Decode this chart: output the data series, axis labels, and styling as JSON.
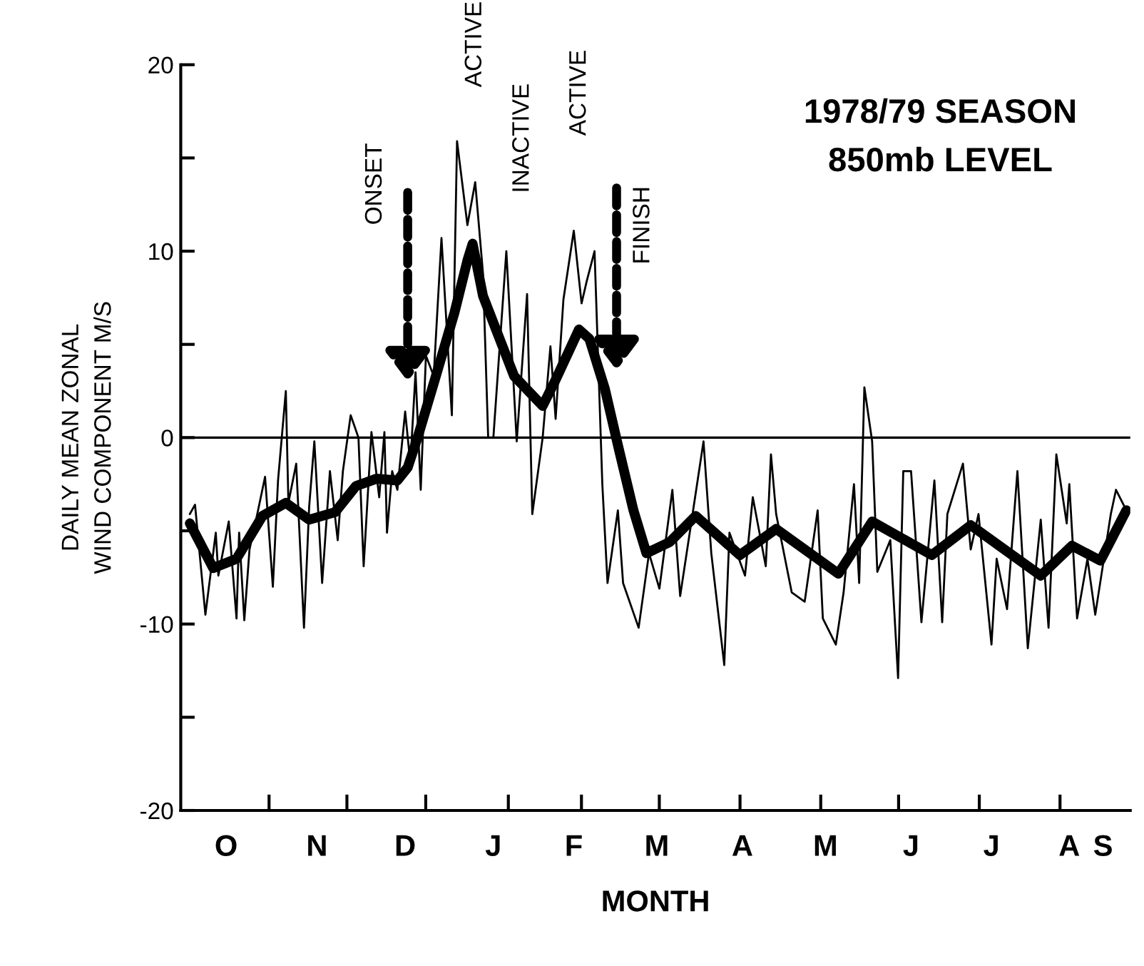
{
  "chart_data": {
    "type": "line",
    "title": "1978/79 SEASON",
    "subtitle": "850mb LEVEL",
    "xlabel": "MONTH",
    "ylabel": "DAILY MEAN ZONAL\nWIND COMPONENT M/S",
    "categories": [
      null,
      null,
      null,
      null,
      null,
      null,
      null,
      null,
      null,
      null,
      null,
      null,
      null,
      null,
      null,
      null,
      null,
      "O",
      null,
      null,
      null,
      null,
      null,
      null,
      null,
      null,
      null,
      null,
      null,
      null,
      null,
      null,
      null,
      null,
      null,
      null,
      null,
      null,
      null,
      null,
      null,
      null,
      null,
      null,
      null,
      null,
      null,
      null,
      null,
      null,
      null,
      null,
      "N",
      null,
      null,
      null,
      null,
      null,
      null,
      null,
      null,
      null,
      null,
      null,
      null,
      null,
      null,
      null,
      null,
      null,
      null,
      null,
      null,
      null,
      null,
      null,
      null,
      null,
      null,
      null,
      null,
      null,
      null,
      null,
      null,
      null,
      "D",
      null,
      null,
      null,
      null,
      null,
      null,
      null,
      null,
      null,
      null,
      null,
      null,
      null,
      null,
      null,
      null,
      null,
      null,
      null,
      null,
      null,
      null,
      null,
      null,
      null,
      null,
      null,
      null,
      null,
      null,
      null,
      null,
      null,
      "J",
      null,
      null,
      null,
      null,
      null,
      null,
      null,
      null,
      null,
      null,
      null,
      null,
      null,
      null,
      null,
      null,
      null,
      null,
      null,
      null,
      null,
      null,
      null,
      null,
      null,
      null,
      null,
      null,
      null,
      null,
      "F",
      null,
      null,
      null,
      null,
      null,
      null,
      null,
      null,
      null,
      null,
      null,
      null,
      null,
      null,
      null,
      null,
      null,
      null,
      null,
      null,
      null,
      null,
      null,
      null,
      null,
      null,
      null,
      null,
      null,
      null,
      null,
      "M",
      null,
      null,
      null,
      null,
      null,
      null,
      null,
      null,
      null,
      null,
      null,
      null,
      null,
      null,
      null,
      null,
      null,
      null,
      null,
      null,
      null,
      null,
      null,
      null,
      null,
      null,
      null,
      null,
      null,
      null,
      null,
      null,
      "A",
      null,
      null,
      null,
      null,
      null,
      null,
      null,
      null,
      null,
      null,
      null,
      null,
      null,
      null,
      null,
      null,
      null,
      null,
      null,
      null,
      null,
      null,
      null,
      null,
      null,
      null,
      null,
      null,
      null,
      null,
      null,
      "M",
      null,
      null,
      null,
      null,
      null,
      null,
      null,
      null,
      null,
      null,
      null,
      null,
      null,
      null,
      null,
      null,
      null,
      null,
      null,
      null,
      null,
      null,
      null,
      null,
      null,
      null,
      null,
      null,
      null,
      null,
      null,
      null,
      "J",
      null,
      null,
      null,
      null,
      null,
      null,
      null,
      null,
      null,
      null,
      null,
      null,
      null,
      null,
      null,
      null,
      null,
      null,
      null,
      null,
      null,
      null,
      null,
      null,
      null,
      null,
      null,
      null,
      null,
      null,
      "J",
      null,
      null,
      null,
      null,
      null,
      null,
      null,
      null,
      null,
      null,
      null,
      null,
      null,
      null,
      null,
      null,
      null,
      null,
      null,
      null,
      null,
      null,
      null,
      null,
      null,
      null,
      null,
      null,
      null,
      "A",
      null,
      null,
      null,
      null,
      null,
      null,
      null,
      null,
      null,
      null,
      null,
      null,
      "S",
      null,
      null,
      null,
      null,
      null,
      null,
      null,
      null,
      null,
      null
    ],
    "ylim": [
      -20,
      20
    ],
    "yticks": [
      -20,
      -10,
      0,
      10,
      20,
      {
        "value": -15,
        "label": null
      },
      {
        "value": -5,
        "label": null
      },
      {
        "value": 5,
        "label": null
      },
      {
        "value": 15,
        "label": null
      }
    ],
    "grid": false,
    "legend": false,
    "marker": "none",
    "line_style": "solid",
    "ref_lines": [
      {
        "axis": "y",
        "value": 0,
        "color": "#000000",
        "line_style": "solid"
      }
    ],
    "annotations": [
      "ONSET",
      "FINISH",
      "ACTIVE",
      "INACTIVE",
      "ACTIVE"
    ],
    "series": [
      {
        "color": "#000000",
        "values": [
          null,
          null,
          null,
          -4.1,
          null,
          -3.6,
          null,
          null,
          null,
          -9.5,
          null,
          null,
          null,
          -5.1,
          -7.4,
          null,
          null,
          null,
          -4.5,
          null,
          null,
          -9.7,
          -5.1,
          null,
          -9.8,
          null,
          -6.0,
          null,
          null,
          -4.1,
          null,
          null,
          -2.1,
          null,
          null,
          -8.0,
          null,
          -2.3,
          null,
          null,
          2.5,
          -3.5,
          null,
          null,
          -1.4,
          null,
          null,
          -10.2,
          null,
          -3.7,
          null,
          -0.2,
          null,
          null,
          -7.8,
          null,
          null,
          -1.8,
          null,
          null,
          -5.5,
          null,
          -1.8,
          null,
          null,
          1.2,
          null,
          null,
          0.0,
          null,
          -6.9,
          null,
          null,
          0.3,
          null,
          null,
          -3.2,
          null,
          0.3,
          -5.1,
          null,
          -1.8,
          null,
          -2.8,
          null,
          null,
          1.4,
          null,
          -1.4,
          null,
          3.5,
          null,
          -2.8,
          null,
          4.4,
          null,
          null,
          3.3,
          null,
          null,
          10.7,
          null,
          null,
          null,
          1.2,
          null,
          15.9,
          null,
          null,
          null,
          11.4,
          null,
          null,
          13.7,
          null,
          null,
          8.8,
          null,
          0.0,
          null,
          0.0,
          null,
          null,
          null,
          null,
          10.0,
          null,
          null,
          null,
          -0.2,
          null,
          null,
          null,
          7.7,
          null,
          -4.1,
          null,
          null,
          null,
          0.0,
          null,
          null,
          4.9,
          null,
          1.0,
          null,
          null,
          7.4,
          null,
          null,
          null,
          11.1,
          null,
          null,
          7.2,
          null,
          8.4,
          null,
          null,
          10.0,
          null,
          null,
          -2.5,
          null,
          -7.8,
          null,
          null,
          null,
          -3.9,
          null,
          -7.8,
          null,
          null,
          null,
          null,
          null,
          -10.2,
          null,
          null,
          null,
          -6.2,
          null,
          null,
          null,
          -8.1,
          null,
          null,
          null,
          null,
          -2.8,
          null,
          null,
          -8.5,
          null,
          null,
          null,
          null,
          -3.9,
          null,
          null,
          null,
          -0.2,
          null,
          null,
          -6.2,
          null,
          null,
          null,
          null,
          -12.2,
          null,
          -5.1,
          null,
          null,
          null,
          null,
          null,
          -7.4,
          null,
          null,
          -3.2,
          null,
          null,
          null,
          null,
          -6.9,
          null,
          -0.9,
          null,
          -4.1,
          null,
          null,
          null,
          null,
          null,
          -8.3,
          null,
          null,
          null,
          null,
          -8.8,
          null,
          null,
          null,
          null,
          -3.9,
          null,
          -9.7,
          null,
          null,
          null,
          null,
          -11.1,
          null,
          null,
          -8.3,
          null,
          null,
          null,
          -2.5,
          null,
          -7.8,
          null,
          2.7,
          null,
          null,
          -0.2,
          null,
          -7.2,
          null,
          null,
          null,
          null,
          -5.5,
          null,
          null,
          -12.9,
          null,
          -1.8,
          null,
          null,
          -1.8,
          null,
          null,
          null,
          -9.9,
          null,
          null,
          null,
          null,
          -2.3,
          null,
          null,
          -9.9,
          null,
          -4.1,
          null,
          null,
          null,
          null,
          null,
          -1.4,
          null,
          null,
          -6.0,
          null,
          null,
          -4.1,
          null,
          null,
          null,
          null,
          -11.1,
          null,
          -6.5,
          null,
          null,
          null,
          -9.2,
          null,
          null,
          null,
          -1.8,
          null,
          null,
          null,
          -11.3,
          null,
          null,
          null,
          null,
          -4.4,
          null,
          null,
          -10.2,
          null,
          null,
          -0.9,
          null,
          null,
          null,
          -4.6,
          -2.5,
          null,
          null,
          -9.7,
          null,
          null,
          null,
          -6.5,
          null,
          null,
          -9.5,
          null,
          null,
          null,
          null,
          null,
          -4.1,
          null,
          -2.8,
          null,
          null,
          null,
          -3.9,
          null
        ]
      },
      {
        "color": "#000000",
        "values": [
          null,
          null,
          null,
          -4.6,
          null,
          null,
          null,
          null,
          null,
          null,
          null,
          null,
          -7.0,
          null,
          null,
          null,
          null,
          null,
          null,
          null,
          null,
          -6.5,
          null,
          null,
          null,
          null,
          null,
          null,
          null,
          null,
          null,
          -4.2,
          null,
          null,
          null,
          null,
          null,
          null,
          null,
          null,
          -3.5,
          null,
          null,
          null,
          null,
          null,
          null,
          null,
          null,
          -4.4,
          null,
          null,
          null,
          null,
          null,
          null,
          null,
          null,
          null,
          -4.0,
          null,
          null,
          null,
          null,
          null,
          null,
          null,
          -2.6,
          null,
          null,
          null,
          null,
          null,
          null,
          null,
          -2.2,
          null,
          null,
          null,
          null,
          null,
          null,
          null,
          -2.3,
          null,
          null,
          null,
          -1.6,
          null,
          null,
          null,
          0.1,
          null,
          null,
          null,
          null,
          null,
          2.9,
          null,
          null,
          null,
          null,
          null,
          null,
          null,
          6.7,
          null,
          null,
          null,
          null,
          9.5,
          null,
          10.4,
          null,
          null,
          null,
          7.6,
          null,
          null,
          null,
          null,
          5.8,
          null,
          null,
          null,
          null,
          null,
          null,
          3.3,
          null,
          null,
          null,
          null,
          null,
          null,
          null,
          null,
          null,
          null,
          1.7,
          null,
          null,
          null,
          null,
          3.1,
          null,
          null,
          null,
          null,
          null,
          null,
          null,
          null,
          5.8,
          null,
          null,
          null,
          5.3,
          null,
          null,
          null,
          null,
          null,
          2.6,
          null,
          null,
          null,
          null,
          -0.4,
          null,
          null,
          null,
          null,
          null,
          -3.9,
          null,
          null,
          null,
          null,
          -6.2,
          null,
          null,
          null,
          null,
          null,
          null,
          null,
          null,
          -5.6,
          null,
          null,
          null,
          null,
          null,
          null,
          null,
          null,
          null,
          -4.2,
          null,
          null,
          null,
          null,
          null,
          null,
          null,
          null,
          null,
          null,
          null,
          null,
          null,
          null,
          null,
          null,
          -6.3,
          null,
          null,
          null,
          null,
          null,
          null,
          null,
          null,
          null,
          null,
          null,
          null,
          null,
          -4.9,
          null,
          null,
          null,
          null,
          null,
          null,
          null,
          null,
          null,
          null,
          null,
          null,
          null,
          null,
          null,
          null,
          null,
          null,
          null,
          null,
          null,
          null,
          null,
          -7.3,
          null,
          null,
          null,
          null,
          null,
          null,
          null,
          null,
          null,
          null,
          null,
          null,
          -4.5,
          null,
          null,
          null,
          null,
          null,
          null,
          null,
          null,
          null,
          null,
          null,
          null,
          null,
          null,
          null,
          null,
          null,
          null,
          null,
          null,
          null,
          null,
          -6.3,
          null,
          null,
          null,
          null,
          null,
          null,
          null,
          null,
          null,
          null,
          null,
          null,
          null,
          null,
          -4.7,
          null,
          null,
          null,
          null,
          null,
          null,
          null,
          null,
          null,
          null,
          null,
          null,
          null,
          null,
          null,
          null,
          null,
          null,
          null,
          null,
          null,
          null,
          null,
          null,
          null,
          null,
          -7.4,
          null,
          null,
          null,
          null,
          null,
          null,
          null,
          null,
          null,
          null,
          null,
          -5.8,
          null,
          null,
          null,
          null,
          null,
          null,
          null,
          null,
          null,
          null,
          -6.6,
          null,
          null,
          null,
          null,
          null,
          null,
          null,
          null,
          null,
          -3.9,
          null
        ]
      }
    ]
  }
}
